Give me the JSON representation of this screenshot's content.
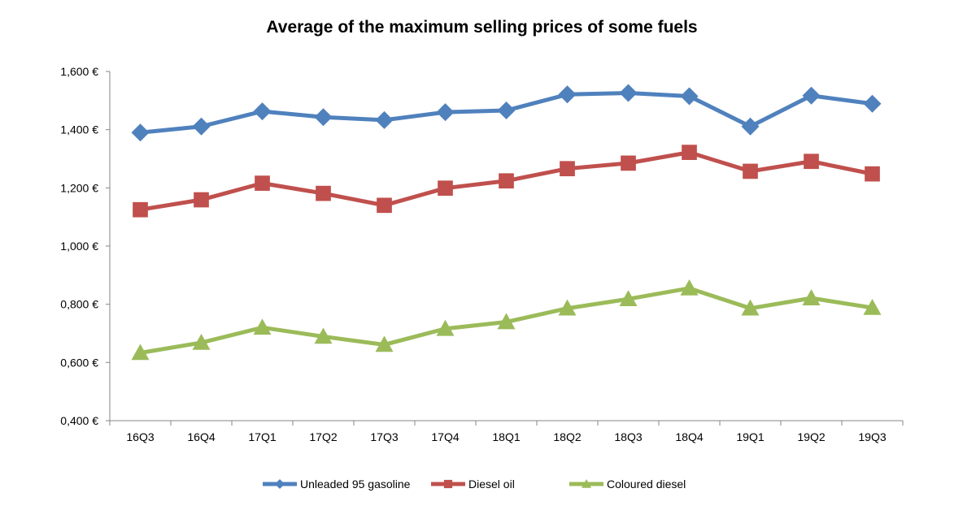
{
  "chart_data": {
    "type": "line",
    "title": "Average of the maximum  selling prices of some fuels",
    "xlabel": "",
    "ylabel": "",
    "categories": [
      "16Q3",
      "16Q4",
      "17Q1",
      "17Q2",
      "17Q3",
      "17Q4",
      "18Q1",
      "18Q2",
      "18Q3",
      "18Q4",
      "19Q1",
      "19Q2",
      "19Q3"
    ],
    "ylim": [
      0.4,
      1.6
    ],
    "yticks": [
      0.4,
      0.6,
      0.8,
      1.0,
      1.2,
      1.4,
      1.6
    ],
    "ytick_labels": [
      "0,400 €",
      "0,600 €",
      "0,800 €",
      "1,000 €",
      "1,200 €",
      "1,400 €",
      "1,600 €"
    ],
    "grid": false,
    "legend_position": "bottom",
    "series": [
      {
        "name": "Unleaded 95 gasoline",
        "color": "#4F81BD",
        "marker": "diamond",
        "values": [
          1.39,
          1.411,
          1.463,
          1.443,
          1.433,
          1.46,
          1.466,
          1.521,
          1.526,
          1.515,
          1.411,
          1.517,
          1.489
        ]
      },
      {
        "name": "Diesel oil",
        "color": "#C0504D",
        "marker": "square",
        "values": [
          1.125,
          1.159,
          1.216,
          1.181,
          1.14,
          1.199,
          1.224,
          1.266,
          1.285,
          1.322,
          1.257,
          1.291,
          1.248
        ]
      },
      {
        "name": "Coloured diesel",
        "color": "#9BBB59",
        "marker": "triangle",
        "values": [
          0.633,
          0.668,
          0.72,
          0.689,
          0.661,
          0.716,
          0.739,
          0.786,
          0.818,
          0.855,
          0.786,
          0.821,
          0.788
        ]
      }
    ]
  }
}
